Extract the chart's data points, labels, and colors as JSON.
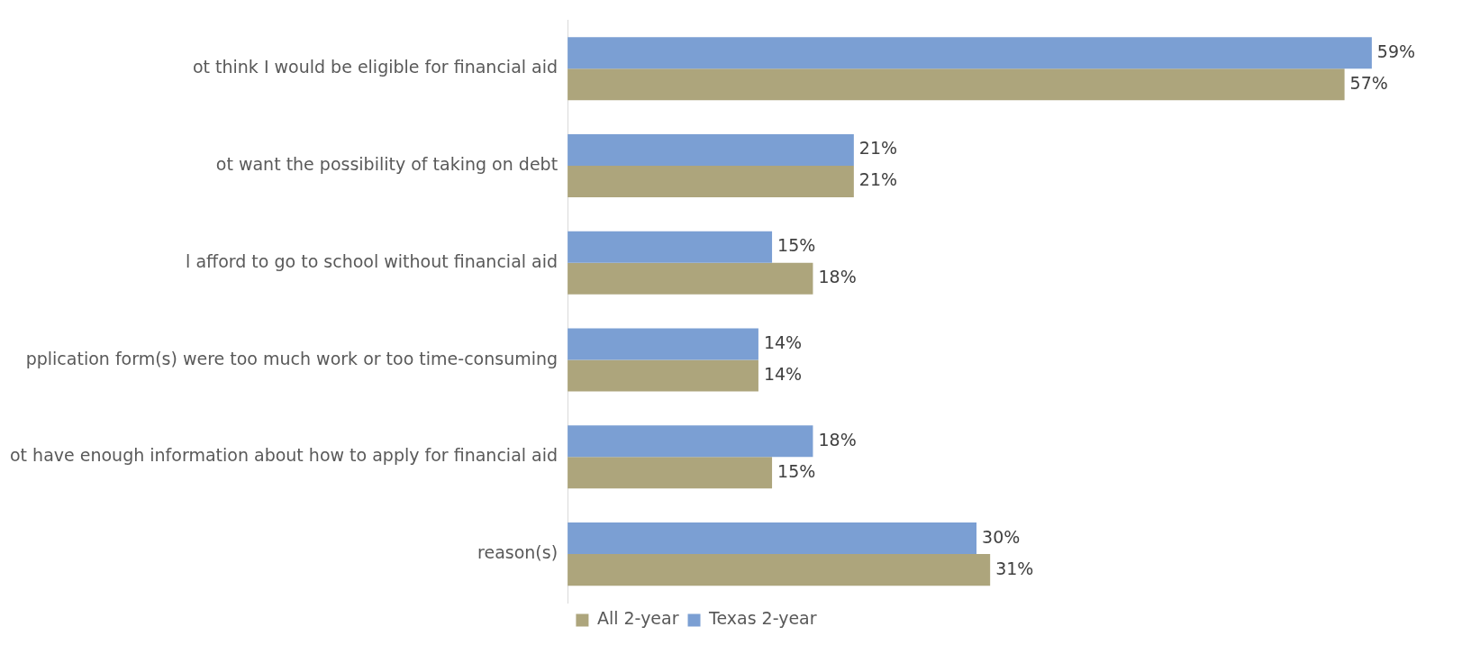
{
  "chart_data": {
    "type": "bar",
    "orientation": "horizontal",
    "categories": [
      "ot think I would be eligible for financial aid",
      "ot want the possibility of taking on debt",
      "l afford to go to school without financial aid",
      "pplication form(s) were too much work or too time-consuming",
      "ot have enough information about how to apply for financial aid",
      "reason(s)"
    ],
    "series": [
      {
        "name": "Texas 2-year",
        "color": "#7b9fd3",
        "values": [
          59,
          21,
          15,
          14,
          18,
          30
        ],
        "value_labels": [
          "59%",
          "21%",
          "15%",
          "14%",
          "18%",
          "30%"
        ]
      },
      {
        "name": "All 2-year",
        "color": "#ada57c",
        "values": [
          57,
          21,
          18,
          14,
          15,
          31
        ],
        "value_labels": [
          "57%",
          "21%",
          "18%",
          "14%",
          "15%",
          "31%"
        ]
      }
    ],
    "legend": "bottom"
  }
}
